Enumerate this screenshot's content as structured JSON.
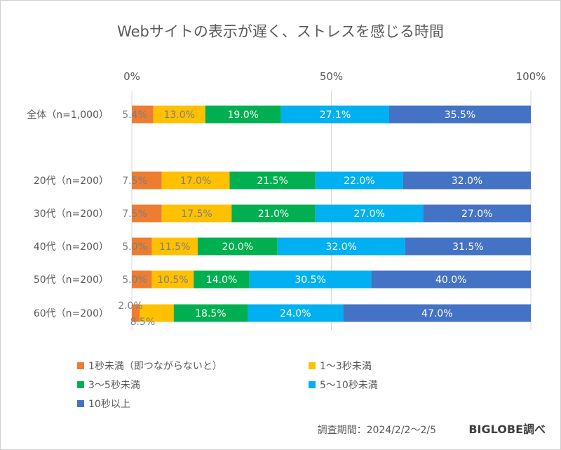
{
  "chart_data": {
    "type": "bar",
    "orientation": "horizontal-stacked-100",
    "title": "Webサイトの表示が遅く、ストレスを感じる時間",
    "xlim": [
      0,
      100
    ],
    "x_ticks": [
      "0%",
      "50%",
      "100%"
    ],
    "grid": true,
    "legend_placement": "bottom",
    "categories": [
      "全体（n=1,000）",
      "20代（n=200）",
      "30代（n=200）",
      "40代（n=200）",
      "50代（n=200）",
      "60代（n=200）"
    ],
    "series": [
      {
        "name": "1秒未満（即つながらないと）",
        "color": "#ED7D31",
        "values": [
          5.4,
          7.5,
          7.5,
          5.0,
          5.0,
          2.0
        ]
      },
      {
        "name": "1～3秒未満",
        "color": "#FFC000",
        "values": [
          13.0,
          17.0,
          17.5,
          11.5,
          10.5,
          8.5
        ]
      },
      {
        "name": "3～5秒未満",
        "color": "#00B050",
        "values": [
          19.0,
          21.5,
          21.0,
          20.0,
          14.0,
          18.5
        ]
      },
      {
        "name": "5～10秒未満",
        "color": "#00B0F0",
        "values": [
          27.1,
          22.0,
          27.0,
          32.0,
          30.5,
          24.0
        ]
      },
      {
        "name": "10秒以上",
        "color": "#4472C4",
        "values": [
          35.5,
          32.0,
          27.0,
          31.5,
          40.0,
          47.0
        ]
      }
    ],
    "footnote": "調査期間：2024/2/2～2/5",
    "source": "BIGLOBE調べ"
  }
}
